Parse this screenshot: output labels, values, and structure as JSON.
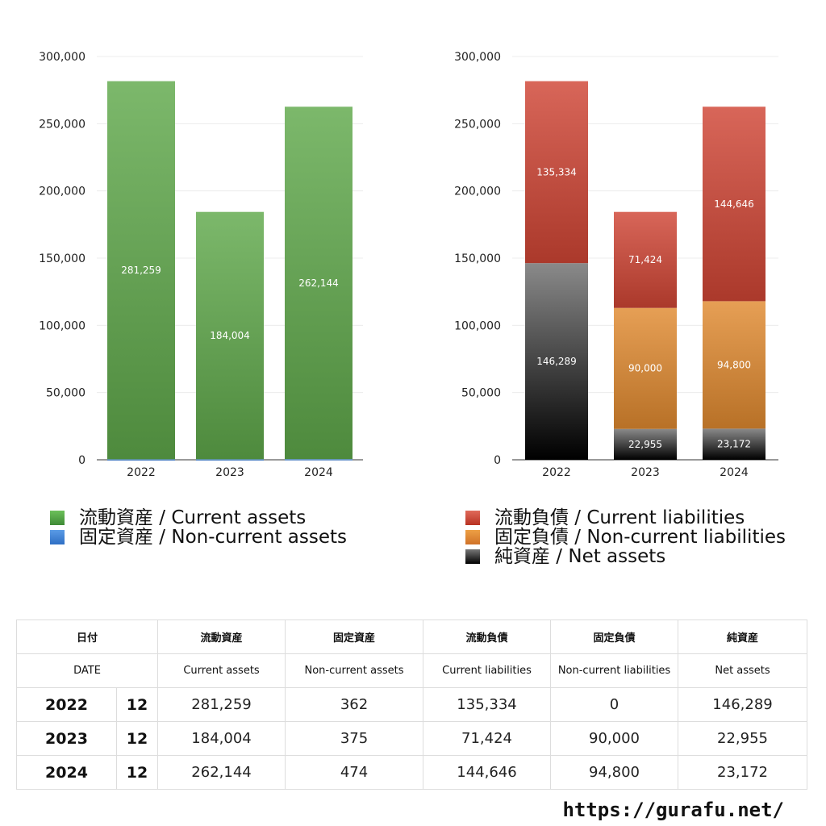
{
  "chart_data": [
    {
      "type": "bar",
      "stacked": true,
      "categories": [
        "2022",
        "2023",
        "2024"
      ],
      "ylim": [
        0,
        300000
      ],
      "yticks": [
        "0",
        "50,000",
        "100,000",
        "150,000",
        "200,000",
        "250,000",
        "300,000"
      ],
      "series": [
        {
          "name": "固定資産 / Non-current assets",
          "values": [
            362,
            375,
            474
          ],
          "labels": [
            "362",
            "375",
            "474"
          ],
          "color": "#3b7fd6"
        },
        {
          "name": "流動資産 / Current assets",
          "values": [
            281259,
            184004,
            262144
          ],
          "labels": [
            "281,259",
            "184,004",
            "262,144"
          ],
          "color": "#5fa84a"
        }
      ],
      "grid": true
    },
    {
      "type": "bar",
      "stacked": true,
      "categories": [
        "2022",
        "2023",
        "2024"
      ],
      "ylim": [
        0,
        300000
      ],
      "yticks": [
        "0",
        "50,000",
        "100,000",
        "150,000",
        "200,000",
        "250,000",
        "300,000"
      ],
      "series": [
        {
          "name": "純資産 / Net assets",
          "values": [
            146289,
            22955,
            23172
          ],
          "labels": [
            "146,289",
            "22,955",
            "23,172"
          ],
          "color": "#333333"
        },
        {
          "name": "固定負債 / Non-current liabilities",
          "values": [
            0,
            90000,
            94800
          ],
          "labels": [
            "",
            "90,000",
            "94,800"
          ],
          "color": "#e08a30"
        },
        {
          "name": "流動負債 / Current liabilities",
          "values": [
            135334,
            71424,
            144646
          ],
          "labels": [
            "135,334",
            "71,424",
            "144,646"
          ],
          "color": "#d04535"
        }
      ],
      "grid": true
    }
  ],
  "legend_left": [
    {
      "label": "流動資産 / Current assets",
      "color": "#5fa84a"
    },
    {
      "label": "固定資産 / Non-current assets",
      "color": "#3b7fd6"
    }
  ],
  "legend_right": [
    {
      "label": "流動負債 / Current liabilities",
      "color": "#d04535"
    },
    {
      "label": "固定負債 / Non-current liabilities",
      "color": "#e08a30"
    },
    {
      "label": "純資産 / Net assets",
      "color": "#333333"
    }
  ],
  "table": {
    "header_jp": [
      "日付",
      "流動資産",
      "固定資産",
      "流動負債",
      "固定負債",
      "純資産"
    ],
    "header_en": [
      "DATE",
      "Current assets",
      "Non-current assets",
      "Current liabilities",
      "Non-current liabilities",
      "Net assets"
    ],
    "rows": [
      {
        "year": "2022",
        "month": "12",
        "values": [
          "281,259",
          "362",
          "135,334",
          "0",
          "146,289"
        ]
      },
      {
        "year": "2023",
        "month": "12",
        "values": [
          "184,004",
          "375",
          "71,424",
          "90,000",
          "22,955"
        ]
      },
      {
        "year": "2024",
        "month": "12",
        "values": [
          "262,144",
          "474",
          "144,646",
          "94,800",
          "23,172"
        ]
      }
    ]
  },
  "footer": {
    "url": "https://gurafu.net/"
  }
}
